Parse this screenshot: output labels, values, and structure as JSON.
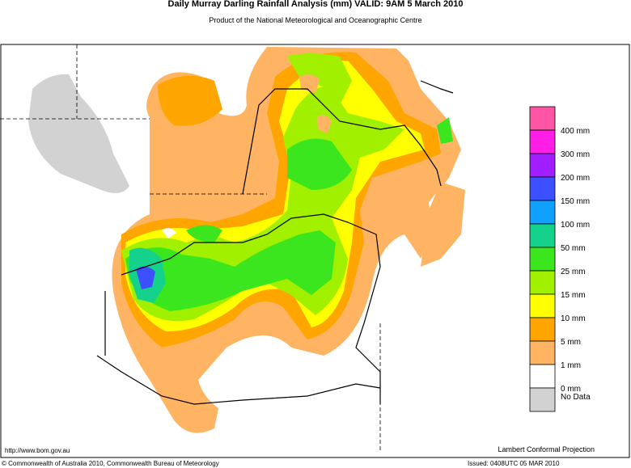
{
  "header": {
    "title": "Daily Murray Darling Rainfall Analysis (mm)  VALID: 9AM  5 March 2010",
    "subtitle": "Product of the National Meteorological and Oceanographic Centre"
  },
  "legend": {
    "colors": [
      "#ff55a5",
      "#ff1ee6",
      "#a01eff",
      "#3c50ff",
      "#10a0ff",
      "#14d28c",
      "#3ce61e",
      "#a0f000",
      "#ffff00",
      "#ffa500",
      "#ffb464",
      "#ffffff",
      "#d2d2d2"
    ],
    "labels": [
      "400 mm",
      "300 mm",
      "200 mm",
      "150 mm",
      "100 mm",
      "50 mm",
      "25 mm",
      "15 mm",
      "10 mm",
      "5 mm",
      "1 mm",
      "0 mm",
      "No Data"
    ]
  },
  "footer": {
    "url": "http://www.bom.gov.au",
    "projection": "Lambert Conformal Projection",
    "copyright": "© Commonwealth of Australia 2010, Commonwealth Bureau of Meteorology",
    "issued": "Issued: 0408UTC 05 MAR 2010"
  }
}
